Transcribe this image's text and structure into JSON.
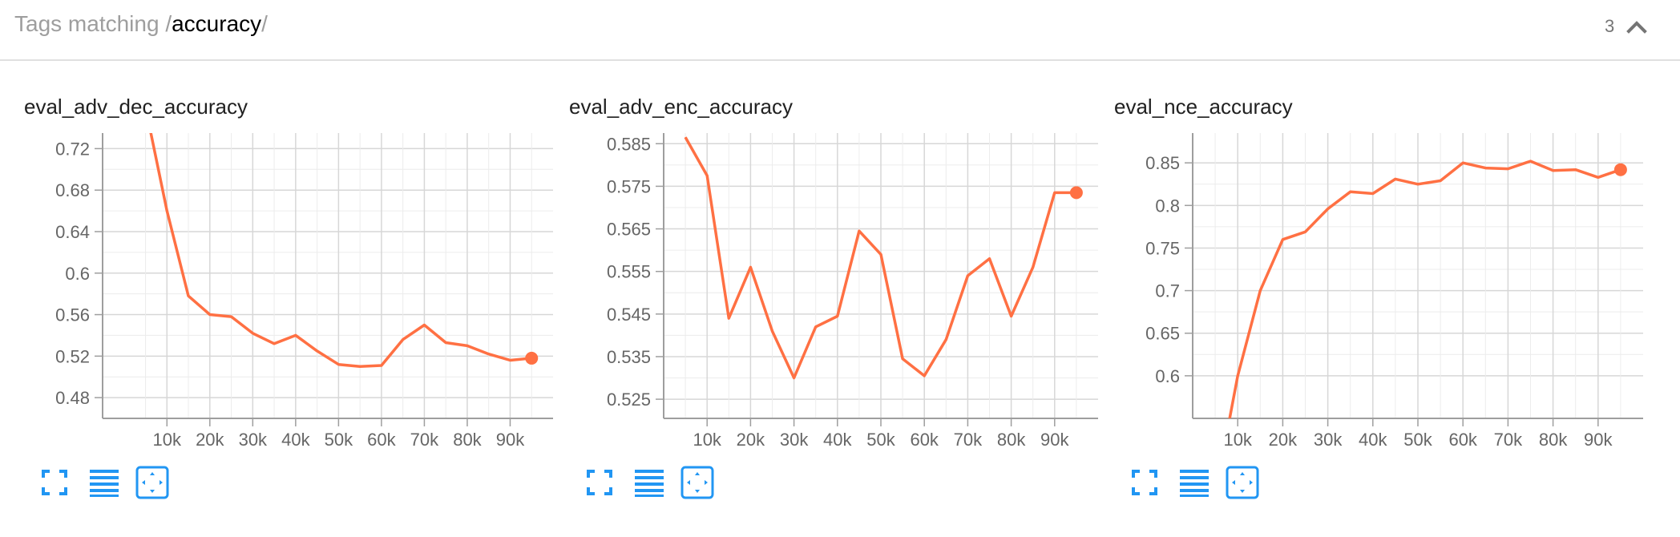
{
  "header": {
    "prefix": "Tags matching /",
    "query": "accuracy",
    "suffix": "/",
    "count": "3",
    "toggle_icon": "chevron-up-icon"
  },
  "colors": {
    "line": "#ff7043",
    "grid": "#d7d7d7",
    "axis": "#9e9e9e",
    "tool_icon": "#2196f3"
  },
  "tools": {
    "fullscreen_icon": "fullscreen-icon",
    "log_scale_icon": "log-scale-icon",
    "fit_domain_icon": "fit-domain-icon"
  },
  "chart_data": [
    {
      "type": "line",
      "title": "eval_adv_dec_accuracy",
      "xlabel": "",
      "ylabel": "",
      "grid": true,
      "xlim": [
        -5000,
        100000
      ],
      "ylim": [
        0.46,
        0.735
      ],
      "x_ticks": [
        10000,
        20000,
        30000,
        40000,
        50000,
        60000,
        70000,
        80000,
        90000
      ],
      "x_tick_labels": [
        "10k",
        "20k",
        "30k",
        "40k",
        "50k",
        "60k",
        "70k",
        "80k",
        "90k"
      ],
      "y_ticks": [
        0.48,
        0.52,
        0.56,
        0.6,
        0.64,
        0.68,
        0.72
      ],
      "y_tick_labels": [
        "0.48",
        "0.52",
        "0.56",
        "0.6",
        "0.64",
        "0.68",
        "0.72"
      ],
      "series": [
        {
          "x": [
            5000,
            10000,
            15000,
            20000,
            25000,
            30000,
            35000,
            40000,
            45000,
            50000,
            55000,
            60000,
            65000,
            70000,
            75000,
            80000,
            85000,
            90000,
            95000
          ],
          "y": [
            0.76,
            0.66,
            0.578,
            0.56,
            0.558,
            0.542,
            0.532,
            0.54,
            0.525,
            0.512,
            0.51,
            0.511,
            0.536,
            0.55,
            0.533,
            0.53,
            0.522,
            0.516,
            0.518
          ]
        }
      ]
    },
    {
      "type": "line",
      "title": "eval_adv_enc_accuracy",
      "xlabel": "",
      "ylabel": "",
      "grid": true,
      "xlim": [
        0,
        100000
      ],
      "ylim": [
        0.5205,
        0.5875
      ],
      "x_ticks": [
        10000,
        20000,
        30000,
        40000,
        50000,
        60000,
        70000,
        80000,
        90000
      ],
      "x_tick_labels": [
        "10k",
        "20k",
        "30k",
        "40k",
        "50k",
        "60k",
        "70k",
        "80k",
        "90k"
      ],
      "y_ticks": [
        0.525,
        0.535,
        0.545,
        0.555,
        0.565,
        0.575,
        0.585
      ],
      "y_tick_labels": [
        "0.525",
        "0.535",
        "0.545",
        "0.555",
        "0.565",
        "0.575",
        "0.585"
      ],
      "series": [
        {
          "x": [
            5000,
            10000,
            15000,
            20000,
            25000,
            30000,
            35000,
            40000,
            45000,
            50000,
            55000,
            60000,
            65000,
            70000,
            75000,
            80000,
            85000,
            90000,
            95000
          ],
          "y": [
            0.5865,
            0.5775,
            0.544,
            0.556,
            0.541,
            0.53,
            0.542,
            0.5445,
            0.5645,
            0.559,
            0.5345,
            0.5305,
            0.539,
            0.554,
            0.558,
            0.5445,
            0.556,
            0.5735,
            0.5735
          ]
        }
      ]
    },
    {
      "type": "line",
      "title": "eval_nce_accuracy",
      "xlabel": "",
      "ylabel": "",
      "grid": true,
      "xlim": [
        0,
        100000
      ],
      "ylim": [
        0.55,
        0.885
      ],
      "x_ticks": [
        10000,
        20000,
        30000,
        40000,
        50000,
        60000,
        70000,
        80000,
        90000
      ],
      "x_tick_labels": [
        "10k",
        "20k",
        "30k",
        "40k",
        "50k",
        "60k",
        "70k",
        "80k",
        "90k"
      ],
      "y_ticks": [
        0.6,
        0.65,
        0.7,
        0.75,
        0.8,
        0.85
      ],
      "y_tick_labels": [
        "0.6",
        "0.65",
        "0.7",
        "0.75",
        "0.8",
        "0.85"
      ],
      "series": [
        {
          "x": [
            5000,
            10000,
            15000,
            20000,
            25000,
            30000,
            35000,
            40000,
            45000,
            50000,
            55000,
            60000,
            65000,
            70000,
            75000,
            80000,
            85000,
            90000,
            95000
          ],
          "y": [
            0.46,
            0.6,
            0.7,
            0.76,
            0.769,
            0.796,
            0.816,
            0.814,
            0.831,
            0.825,
            0.829,
            0.85,
            0.844,
            0.843,
            0.852,
            0.841,
            0.842,
            0.833,
            0.842
          ]
        }
      ]
    }
  ]
}
